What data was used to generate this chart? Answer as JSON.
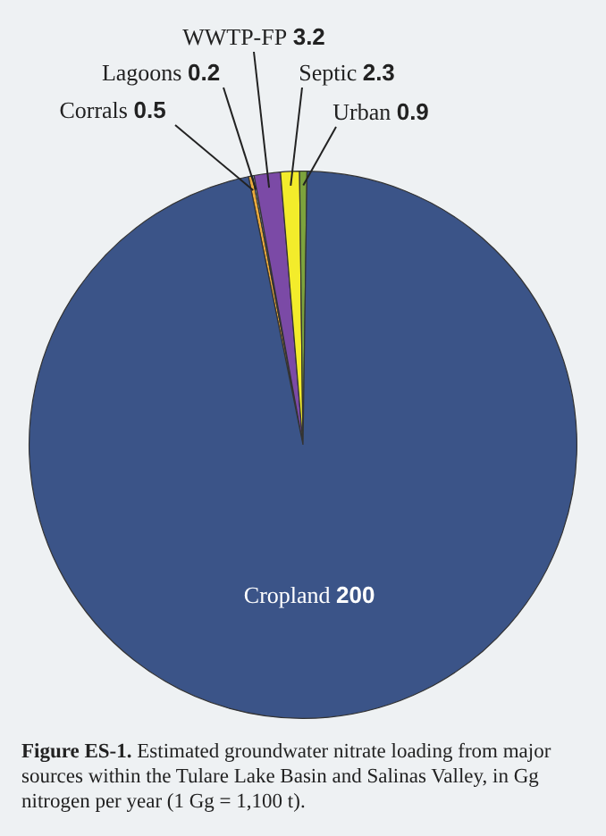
{
  "chart_data": {
    "type": "pie",
    "categories": [
      "Corrals",
      "Lagoons",
      "WWTP-FP",
      "Septic",
      "Urban",
      "Cropland"
    ],
    "values": [
      0.5,
      0.2,
      3.2,
      2.3,
      0.9,
      200
    ],
    "colors": [
      "#e9a93c",
      "#9fc3dd",
      "#7b4aa6",
      "#f3ec2b",
      "#7da33d",
      "#3b5488"
    ],
    "data_labels": true,
    "legend": false,
    "annotations": [
      "Figure ES-1. Estimated groundwater nitrate loading from major sources within the Tulare Lake Basin and Salinas Valley, in Gg nitrogen per year (1 Gg = 1,100 t)."
    ]
  }
}
